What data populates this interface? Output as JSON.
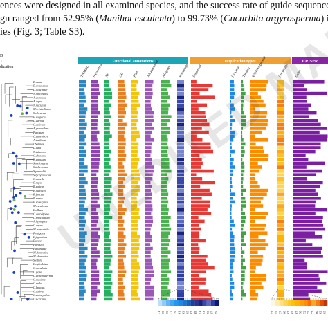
{
  "paragraph": {
    "line1": "ences were designed in all examined species, and the success rate of guide sequence",
    "line2_pre": "gn ranged from 52.95% (",
    "line2_species1": "Manihot esculenta",
    "line2_mid": ") to 99.73% (",
    "line2_species2": "Cucurbita argyrosperma",
    "line2_post": ") in",
    "line3": "ies (Fig. 3; Table S3)."
  },
  "legend": [
    "D",
    "T",
    "dization"
  ],
  "headers": {
    "functional": "Functional annotations",
    "duplication": "Duplication types",
    "crispr": "CRISPR"
  },
  "column_labels": [
    "TrEMBL",
    "Swiss-Prot",
    "Nr",
    "GO",
    "Pfam",
    "All annotation",
    "All genes",
    "Percentage",
    "Dispersed",
    "Proximal",
    "Tandem",
    "WGD/Segmental",
    "Percentage",
    "Guide"
  ],
  "species": [
    "E.nana",
    "D.rotundata",
    "D.officinale",
    "A.officinalis",
    "A.comosus",
    "A.cepa",
    "N.nucifera",
    "M.cristallinum",
    "S.oleracea",
    "B.vulgaris",
    "D.carota",
    "C.sativum",
    "A.graveolens",
    "P.anisum",
    "C.canephora",
    "A.thaliana",
    "I.batatas",
    "D.kaki",
    "N.tabacum",
    "C.chinense",
    "C.annuum",
    "S.melongena",
    "S.tuberosum",
    "S.pennellii",
    "S.lycopersicum",
    "C.rubella",
    "B.rapa",
    "R.sativus",
    "B.oleracea",
    "B.juncea",
    "B.napus",
    "E.salsuginea",
    "M.esculenta",
    "L.album",
    "C.carotifoma",
    "C.reticulatum",
    "A.hypogaea",
    "C.cajan",
    "M.truncatula",
    "P.vulgaris",
    "L.japonicus",
    "F.vesca",
    "P.persica",
    "F.ananassa",
    "M.domestica",
    "M.charantia",
    "S.edule",
    "L.cylindrica",
    "C.moschata",
    "C.pepo",
    "C.argyrosperma",
    "C.maxima",
    "C.melo",
    "C.lanatus",
    "C.sativus",
    "C.colocynthis",
    "L.siceraria"
  ],
  "scale": {
    "left_ticks": [
      "71",
      "73",
      "75",
      "77",
      "79",
      "81",
      "83",
      "85",
      "87",
      "89",
      "91",
      "93",
      "95",
      "97",
      "99"
    ],
    "right_ticks": [
      "52",
      "55",
      "57",
      "60",
      "62",
      "65",
      "67",
      "70",
      "72",
      "75",
      "77",
      "80",
      "82",
      "85"
    ]
  },
  "watermark": "UNEDITED MANUSC",
  "colors": {
    "trembl": "#2e86c1",
    "swissprot": "#8e44ad",
    "nr": "#27ae60",
    "go": "#e67e22",
    "pfam": "#f1c40f",
    "all_annotation": "#9b59b6",
    "all_genes": "#4caf50",
    "dispersed": "#e53935",
    "proximal": "#1e88e5",
    "tandem": "#43a047",
    "wgd": "#fb8c00",
    "guide": "#7b1fa2",
    "header_func": "#1aa6b7",
    "header_dup": "#f0a030",
    "header_crispr": "#8e24aa"
  }
}
